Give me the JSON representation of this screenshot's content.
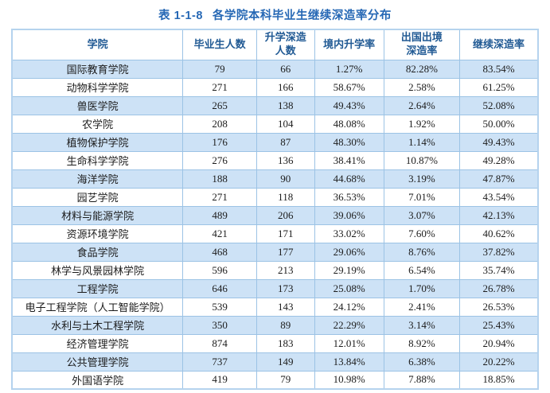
{
  "title": {
    "number": "表 1-1-8",
    "text": "各学院本科毕业生继续深造率分布"
  },
  "colors": {
    "accent_blue": "#2668b5",
    "header_text": "#215a94",
    "row_stripe": "#cde2f6",
    "border": "#9cc3e5"
  },
  "table": {
    "columns": [
      "学院",
      "毕业生人数",
      "升学深造\n人数",
      "境内升学率",
      "出国出境\n深造率",
      "继续深造率"
    ],
    "rows": [
      [
        "国际教育学院",
        "79",
        "66",
        "1.27%",
        "82.28%",
        "83.54%"
      ],
      [
        "动物科学学院",
        "271",
        "166",
        "58.67%",
        "2.58%",
        "61.25%"
      ],
      [
        "兽医学院",
        "265",
        "138",
        "49.43%",
        "2.64%",
        "52.08%"
      ],
      [
        "农学院",
        "208",
        "104",
        "48.08%",
        "1.92%",
        "50.00%"
      ],
      [
        "植物保护学院",
        "176",
        "87",
        "48.30%",
        "1.14%",
        "49.43%"
      ],
      [
        "生命科学学院",
        "276",
        "136",
        "38.41%",
        "10.87%",
        "49.28%"
      ],
      [
        "海洋学院",
        "188",
        "90",
        "44.68%",
        "3.19%",
        "47.87%"
      ],
      [
        "园艺学院",
        "271",
        "118",
        "36.53%",
        "7.01%",
        "43.54%"
      ],
      [
        "材料与能源学院",
        "489",
        "206",
        "39.06%",
        "3.07%",
        "42.13%"
      ],
      [
        "资源环境学院",
        "421",
        "171",
        "33.02%",
        "7.60%",
        "40.62%"
      ],
      [
        "食品学院",
        "468",
        "177",
        "29.06%",
        "8.76%",
        "37.82%"
      ],
      [
        "林学与风景园林学院",
        "596",
        "213",
        "29.19%",
        "6.54%",
        "35.74%"
      ],
      [
        "工程学院",
        "646",
        "173",
        "25.08%",
        "1.70%",
        "26.78%"
      ],
      [
        "电子工程学院（人工智能学院）",
        "539",
        "143",
        "24.12%",
        "2.41%",
        "26.53%"
      ],
      [
        "水利与土木工程学院",
        "350",
        "89",
        "22.29%",
        "3.14%",
        "25.43%"
      ],
      [
        "经济管理学院",
        "874",
        "183",
        "12.01%",
        "8.92%",
        "20.94%"
      ],
      [
        "公共管理学院",
        "737",
        "149",
        "13.84%",
        "6.38%",
        "20.22%"
      ],
      [
        "外国语学院",
        "419",
        "79",
        "10.98%",
        "7.88%",
        "18.85%"
      ]
    ]
  }
}
